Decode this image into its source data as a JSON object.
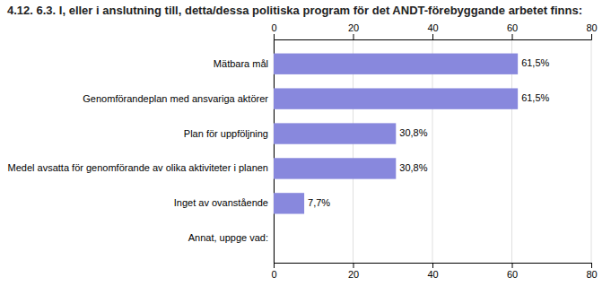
{
  "chart_data": {
    "type": "bar",
    "orientation": "horizontal",
    "title": "4.12. 6.3. I, eller i anslutning till, detta/dessa politiska program för det ANDT-förebyggande arbetet finns:",
    "categories": [
      "Mätbara mål",
      "Genomförandeplan med ansvariga aktörer",
      "Plan för uppföljning",
      "Medel avsatta för genomförande av olika aktiviteter i planen",
      "Inget av ovanstående",
      "Annat, uppge vad:"
    ],
    "values": [
      61.5,
      61.5,
      30.8,
      30.8,
      7.7,
      0.0
    ],
    "value_labels": [
      "61,5%",
      "61,5%",
      "30,8%",
      "30,8%",
      "7,7%",
      null
    ],
    "data_labels": true,
    "color": "#8888dd",
    "xlim": [
      0,
      80
    ],
    "xticks": [
      0,
      20,
      40,
      60,
      80
    ],
    "grid": true
  }
}
